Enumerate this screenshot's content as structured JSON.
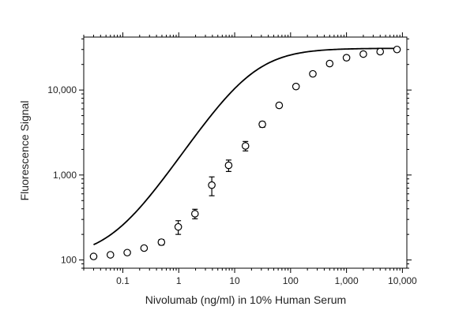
{
  "chart_data": {
    "type": "scatter",
    "title": "",
    "xlabel": "Nivolumab (ng/ml) in 10% Human Serum",
    "ylabel": "Fluorescence Signal",
    "x_scale": "log",
    "y_scale": "log",
    "xlim": [
      0.02,
      12000
    ],
    "ylim": [
      80,
      42000
    ],
    "x_ticks": [
      {
        "value": 0.1,
        "label": "0.1"
      },
      {
        "value": 1,
        "label": "1"
      },
      {
        "value": 10,
        "label": "10"
      },
      {
        "value": 100,
        "label": "100"
      },
      {
        "value": 1000,
        "label": "1,000"
      },
      {
        "value": 10000,
        "label": "10,000"
      }
    ],
    "y_ticks": [
      {
        "value": 100,
        "label": "100"
      },
      {
        "value": 1000,
        "label": "1,000"
      },
      {
        "value": 10000,
        "label": "10,000"
      }
    ],
    "grid": false,
    "legend": "none",
    "marker": "open-circle",
    "color": "#000000",
    "series": [
      {
        "points": [
          {
            "x": 0.03,
            "y": 110,
            "err": 4
          },
          {
            "x": 0.06,
            "y": 115,
            "err": 5
          },
          {
            "x": 0.12,
            "y": 122,
            "err": 6
          },
          {
            "x": 0.24,
            "y": 138,
            "err": 7
          },
          {
            "x": 0.49,
            "y": 162,
            "err": 12
          },
          {
            "x": 0.98,
            "y": 245,
            "err": 45
          },
          {
            "x": 1.95,
            "y": 350,
            "err": 45
          },
          {
            "x": 3.9,
            "y": 760,
            "err": 190
          },
          {
            "x": 7.8,
            "y": 1300,
            "err": 200
          },
          {
            "x": 15.6,
            "y": 2200,
            "err": 280
          },
          {
            "x": 31.25,
            "y": 3950,
            "err": 300
          },
          {
            "x": 62.5,
            "y": 6600,
            "err": 400
          },
          {
            "x": 125,
            "y": 11000,
            "err": 600
          },
          {
            "x": 250,
            "y": 15500,
            "err": 900
          },
          {
            "x": 500,
            "y": 20500,
            "err": 1200
          },
          {
            "x": 1000,
            "y": 24000,
            "err": 1500
          },
          {
            "x": 2000,
            "y": 26500,
            "err": 1600
          },
          {
            "x": 4000,
            "y": 28300,
            "err": 1600
          },
          {
            "x": 8000,
            "y": 30000,
            "err": 1600
          }
        ],
        "fit": {
          "type": "4PL",
          "bottom": 105,
          "top": 31000,
          "ec50": 20,
          "hill": 1.0,
          "x_range": [
            0.03,
            8000
          ]
        }
      }
    ]
  }
}
